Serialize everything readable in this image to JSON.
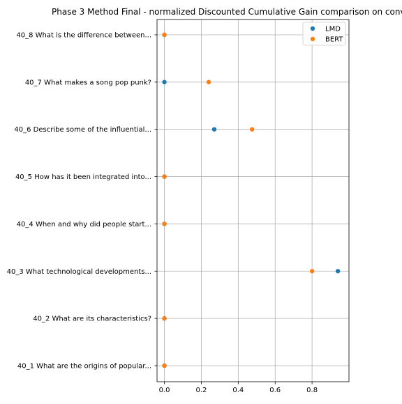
{
  "chart_data": {
    "type": "scatter",
    "title": "Phase 3 Method Final - normalized Discounted Cumulative Gain comparison on conv",
    "xlabel": "",
    "ylabel": "",
    "grid": true,
    "legend_position": "top-right",
    "xlim": [
      -0.04,
      1.0
    ],
    "x_ticks": [
      "0.0",
      "0.2",
      "0.4",
      "0.6",
      "0.8"
    ],
    "categories": [
      "40_1 What are the origins of popular...",
      "40_2 What are its characteristics?",
      "40_3 What technological developments...",
      "40_4 When and why did people start...",
      "40_5 How has it been integrated into...",
      "40_6 Describe some of the influential...",
      "40_7 What makes a song pop punk?",
      "40_8 What is the difference between..."
    ],
    "series": [
      {
        "name": "LMD",
        "color": "#1f77b4",
        "values": [
          0.0,
          0.0,
          0.94,
          0.0,
          0.0,
          0.27,
          0.0,
          0.0
        ]
      },
      {
        "name": "BERT",
        "color": "#ff7f0e",
        "values": [
          0.0,
          0.0,
          0.8,
          0.0,
          0.0,
          0.475,
          0.24,
          0.0
        ]
      }
    ]
  }
}
